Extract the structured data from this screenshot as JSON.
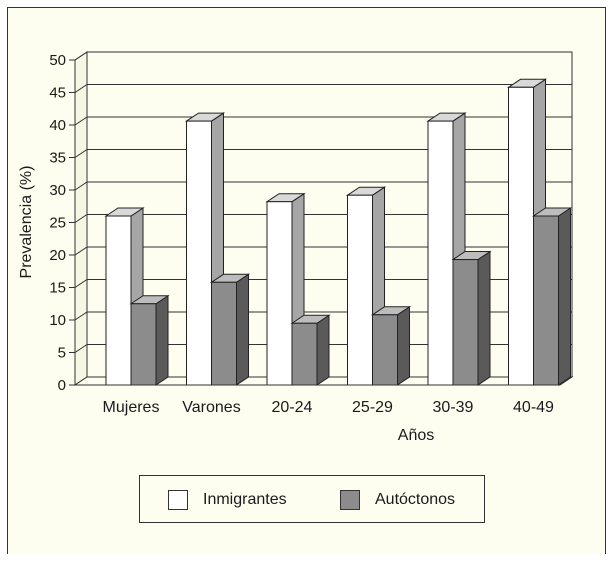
{
  "chart_data": {
    "type": "bar",
    "categories": [
      "Mujeres",
      "Varones",
      "20-24",
      "25-29",
      "30-39",
      "40-49"
    ],
    "series": [
      {
        "name": "Inmigrantes",
        "values": [
          26,
          40.6,
          28.2,
          29.2,
          40.6,
          45.8
        ],
        "color": "#ffffff"
      },
      {
        "name": "Autóctonos",
        "values": [
          12.5,
          15.8,
          9.5,
          10.8,
          19.3,
          26
        ],
        "color": "#8c8c8c"
      }
    ],
    "title": "",
    "xlabel": "Años",
    "ylabel": "Prevalencia (%)",
    "ylim": [
      0,
      50
    ],
    "yticks": [
      0,
      5,
      10,
      15,
      20,
      25,
      30,
      35,
      40,
      45,
      50
    ],
    "grid": true,
    "legend_position": "bottom",
    "colors": {
      "background": "#fdfdf0",
      "bar_side": "#a6a6a6",
      "autoctonos_side": "#5a5a5a",
      "bar_top": "#d9d9d9",
      "autoctonos_top": "#bdbdbd"
    }
  }
}
